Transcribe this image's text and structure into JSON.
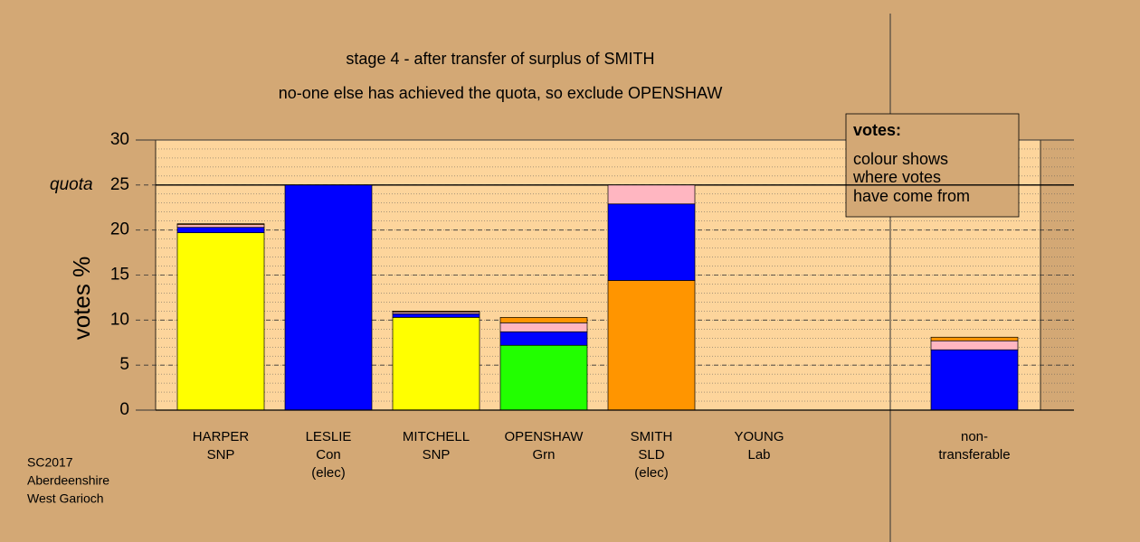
{
  "chart_data": {
    "type": "stacked-bar",
    "title": "stage 4 - after transfer of surplus of SMITH",
    "subtitle": "no-one else has achieved the quota, so exclude OPENSHAW",
    "y_label": "votes %",
    "categories": [
      [
        "HARPER",
        "SNP"
      ],
      [
        "LESLIE",
        "Con",
        "(elec)"
      ],
      [
        "MITCHELL",
        "SNP"
      ],
      [
        "OPENSHAW",
        "Grn"
      ],
      [
        "SMITH",
        "SLD",
        "(elec)"
      ],
      [
        "YOUNG",
        "Lab"
      ],
      null,
      [
        "non-",
        "transferable"
      ]
    ],
    "series": [
      {
        "color": "#ffff00",
        "values": [
          19.7,
          0,
          10.3,
          0,
          0,
          0,
          null,
          0
        ]
      },
      {
        "color": "#22ff00",
        "values": [
          0,
          0,
          0,
          7.2,
          0,
          0,
          null,
          0
        ]
      },
      {
        "color": "#ff9500",
        "values": [
          0,
          0,
          0,
          0,
          14.4,
          0,
          null,
          0
        ]
      },
      {
        "color": "#0000ff",
        "values": [
          0.6,
          25,
          0.4,
          1.5,
          8.5,
          0,
          null,
          6.7
        ]
      },
      {
        "color": "#ffb6c1",
        "values": [
          0.3,
          0,
          0.2,
          1.0,
          2.1,
          0,
          null,
          1.0
        ]
      },
      {
        "color": "#ff9500",
        "values": [
          0.1,
          0,
          0.1,
          0.6,
          0,
          0,
          null,
          0.4
        ]
      }
    ],
    "ylim": [
      0,
      30
    ],
    "yticks": [
      0,
      5,
      10,
      15,
      20,
      25,
      30
    ],
    "minor_grid_step": 1,
    "quota": 25,
    "quota_label": "quota",
    "legend": {
      "title": "votes:",
      "lines": [
        "colour shows",
        "where votes",
        "have come from"
      ]
    },
    "footnote": [
      "SC2017",
      "Aberdeenshire",
      "West Garioch"
    ]
  }
}
